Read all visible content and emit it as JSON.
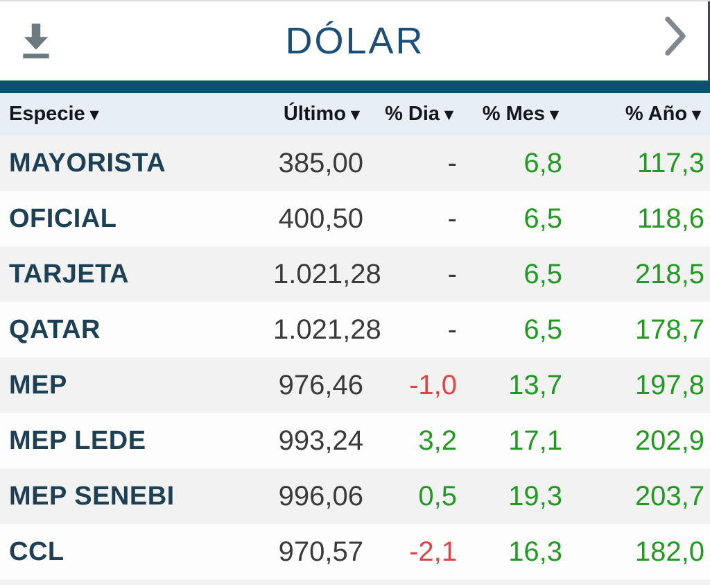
{
  "header": {
    "title": "DÓLAR"
  },
  "colors": {
    "accent_bar": "#0f4f6f",
    "title": "#1b4f78",
    "label": "#1d4055",
    "value": "#3a3a3a",
    "positive": "#229a22",
    "negative": "#dd4545",
    "header_bg": "#e8eef5",
    "stripe_bg": "#f2f2f2",
    "icon_gray": "#6e7a82",
    "chevron_gray": "#81888f"
  },
  "table": {
    "columns": [
      {
        "key": "especie",
        "label": "Especie",
        "sort": "▼",
        "align": "left"
      },
      {
        "key": "ultimo",
        "label": "Último",
        "sort": "▼",
        "align": "right"
      },
      {
        "key": "dia",
        "label": "% Dia",
        "sort": "▼",
        "align": "right"
      },
      {
        "key": "mes",
        "label": "% Mes",
        "sort": "▼",
        "align": "right"
      },
      {
        "key": "ano",
        "label": "% Año",
        "sort": "▼",
        "align": "right"
      }
    ],
    "rows": [
      {
        "especie": "MAYORISTA",
        "ultimo": "385,00",
        "dia": {
          "text": "-",
          "state": "neutral"
        },
        "mes": {
          "text": "6,8",
          "state": "pos"
        },
        "ano": {
          "text": "117,3",
          "state": "pos"
        }
      },
      {
        "especie": "OFICIAL",
        "ultimo": "400,50",
        "dia": {
          "text": "-",
          "state": "neutral"
        },
        "mes": {
          "text": "6,5",
          "state": "pos"
        },
        "ano": {
          "text": "118,6",
          "state": "pos"
        }
      },
      {
        "especie": "TARJETA",
        "ultimo": "1.021,28",
        "dia": {
          "text": "-",
          "state": "neutral"
        },
        "mes": {
          "text": "6,5",
          "state": "pos"
        },
        "ano": {
          "text": "218,5",
          "state": "pos"
        }
      },
      {
        "especie": "QATAR",
        "ultimo": "1.021,28",
        "dia": {
          "text": "-",
          "state": "neutral"
        },
        "mes": {
          "text": "6,5",
          "state": "pos"
        },
        "ano": {
          "text": "178,7",
          "state": "pos"
        }
      },
      {
        "especie": "MEP",
        "ultimo": "976,46",
        "dia": {
          "text": "-1,0",
          "state": "neg"
        },
        "mes": {
          "text": "13,7",
          "state": "pos"
        },
        "ano": {
          "text": "197,8",
          "state": "pos"
        }
      },
      {
        "especie": "MEP LEDE",
        "ultimo": "993,24",
        "dia": {
          "text": "3,2",
          "state": "pos"
        },
        "mes": {
          "text": "17,1",
          "state": "pos"
        },
        "ano": {
          "text": "202,9",
          "state": "pos"
        }
      },
      {
        "especie": "MEP SENEBI",
        "ultimo": "996,06",
        "dia": {
          "text": "0,5",
          "state": "pos"
        },
        "mes": {
          "text": "19,3",
          "state": "pos"
        },
        "ano": {
          "text": "203,7",
          "state": "pos"
        }
      },
      {
        "especie": "CCL",
        "ultimo": "970,57",
        "dia": {
          "text": "-2,1",
          "state": "neg"
        },
        "mes": {
          "text": "16,3",
          "state": "pos"
        },
        "ano": {
          "text": "182,0",
          "state": "pos"
        }
      }
    ]
  }
}
